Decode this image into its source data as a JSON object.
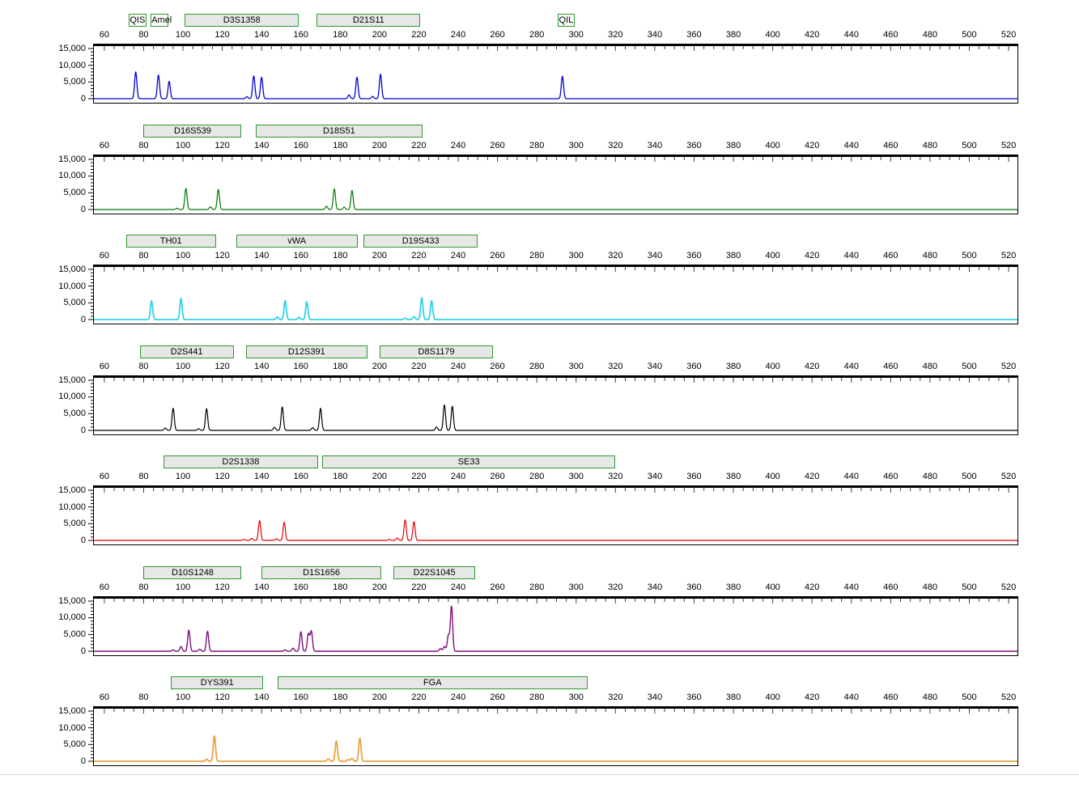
{
  "window": {
    "background": "#ffffff"
  },
  "axis": {
    "x_range": [
      54.7,
      524.5
    ],
    "x_ticks": [
      60,
      80,
      100,
      120,
      140,
      160,
      180,
      200,
      220,
      240,
      260,
      280,
      300,
      320,
      340,
      360,
      380,
      400,
      420,
      440,
      460,
      480,
      500,
      520
    ],
    "x_minor_step": 5,
    "y_range": [
      0,
      15000
    ],
    "y_tick_values": [
      15000,
      10000,
      5000,
      0
    ],
    "y_tick_labels": [
      "15,000",
      "10,000",
      "5,000",
      "0"
    ],
    "y_minor_step": 1000,
    "marker_box_fill": "#e7e7e7",
    "marker_box_border": "#2e9b2e"
  },
  "chart_data": [
    {
      "type": "line",
      "dye": "blue",
      "color": "#0202ce",
      "line_width": 1.3,
      "ylim": [
        0,
        15000
      ],
      "markers": [
        {
          "label": "QIS",
          "from": 72.3,
          "to": 80.6,
          "small": true
        },
        {
          "label": "Amel",
          "from": 83.6,
          "to": 91.8,
          "small": true
        },
        {
          "label": "D3S1358",
          "from": 101,
          "to": 158
        },
        {
          "label": "D21S11",
          "from": 168,
          "to": 220
        },
        {
          "label": "QIL",
          "from": 290.5,
          "to": 298.5,
          "small": true
        }
      ],
      "peaks": [
        [
          76,
          8000
        ],
        [
          87.5,
          7100
        ],
        [
          93,
          5200
        ],
        [
          132.5,
          600
        ],
        [
          136,
          6800
        ],
        [
          140,
          6400
        ],
        [
          184.5,
          1100
        ],
        [
          188.5,
          6400
        ],
        [
          196.5,
          700
        ],
        [
          200.5,
          7300
        ],
        [
          293,
          6700
        ]
      ]
    },
    {
      "type": "line",
      "dye": "green",
      "color": "#007700",
      "line_width": 1.2,
      "ylim": [
        0,
        15000
      ],
      "markers": [
        {
          "label": "D16S539",
          "from": 80,
          "to": 129
        },
        {
          "label": "D18S51",
          "from": 137,
          "to": 221
        }
      ],
      "peaks": [
        [
          97,
          400
        ],
        [
          101.5,
          6300
        ],
        [
          114,
          800
        ],
        [
          118,
          6000
        ],
        [
          173,
          1000
        ],
        [
          177,
          6200
        ],
        [
          182,
          700
        ],
        [
          186,
          5700
        ]
      ]
    },
    {
      "type": "line",
      "dye": "cyan",
      "color": "#2fd3e6",
      "line_width": 1.8,
      "ylim": [
        0,
        15000
      ],
      "markers": [
        {
          "label": "TH01",
          "from": 71,
          "to": 116
        },
        {
          "label": "vWA",
          "from": 127,
          "to": 188
        },
        {
          "label": "D19S433",
          "from": 192,
          "to": 249
        }
      ],
      "peaks": [
        [
          84,
          5600
        ],
        [
          99,
          6300
        ],
        [
          148,
          800
        ],
        [
          152,
          5600
        ],
        [
          159,
          700
        ],
        [
          163,
          5300
        ],
        [
          213,
          400
        ],
        [
          217.5,
          900
        ],
        [
          221.5,
          6500
        ],
        [
          226.5,
          5600
        ]
      ]
    },
    {
      "type": "line",
      "dye": "black",
      "color": "#000000",
      "line_width": 1.2,
      "ylim": [
        0,
        15000
      ],
      "markers": [
        {
          "label": "D2S441",
          "from": 78,
          "to": 125
        },
        {
          "label": "D12S391",
          "from": 132,
          "to": 193
        },
        {
          "label": "D8S1179",
          "from": 200,
          "to": 257
        }
      ],
      "peaks": [
        [
          91,
          700
        ],
        [
          95,
          6600
        ],
        [
          108,
          500
        ],
        [
          112,
          6500
        ],
        [
          146.5,
          900
        ],
        [
          150.5,
          7000
        ],
        [
          166,
          800
        ],
        [
          170,
          6600
        ],
        [
          229,
          1000
        ],
        [
          233,
          7600
        ],
        [
          237,
          7200
        ]
      ]
    },
    {
      "type": "line",
      "dye": "red",
      "color": "#e00000",
      "line_width": 1.2,
      "ylim": [
        0,
        15000
      ],
      "markers": [
        {
          "label": "D2S1338",
          "from": 90,
          "to": 168
        },
        {
          "label": "SE33",
          "from": 171,
          "to": 319
        }
      ],
      "peaks": [
        [
          131,
          300
        ],
        [
          135,
          600
        ],
        [
          139,
          5900
        ],
        [
          147.5,
          500
        ],
        [
          151.5,
          5400
        ],
        [
          205,
          300
        ],
        [
          209,
          700
        ],
        [
          213,
          6100
        ],
        [
          217.5,
          5600
        ]
      ]
    },
    {
      "type": "line",
      "dye": "purple",
      "color": "#7d107d",
      "line_width": 1.4,
      "ylim": [
        0,
        15000
      ],
      "markers": [
        {
          "label": "D10S1248",
          "from": 80,
          "to": 129
        },
        {
          "label": "D1S1656",
          "from": 140,
          "to": 200
        },
        {
          "label": "D22S1045",
          "from": 207,
          "to": 248
        }
      ],
      "peaks": [
        [
          95,
          400
        ],
        [
          99,
          1400
        ],
        [
          103,
          6300
        ],
        [
          108.5,
          600
        ],
        [
          112.5,
          6000
        ],
        [
          152,
          400
        ],
        [
          156,
          900
        ],
        [
          160,
          5800
        ],
        [
          163.8,
          5200
        ],
        [
          165.3,
          6000
        ],
        [
          231,
          800
        ],
        [
          233,
          1400
        ],
        [
          235,
          4700
        ],
        [
          236.6,
          13400
        ]
      ]
    },
    {
      "type": "line",
      "dye": "orange",
      "color": "#e9a440",
      "line_width": 1.8,
      "ylim": [
        0,
        15000
      ],
      "markers": [
        {
          "label": "DYS391",
          "from": 94,
          "to": 140
        },
        {
          "label": "FGA",
          "from": 148,
          "to": 305
        }
      ],
      "peaks": [
        [
          112,
          600
        ],
        [
          116,
          7600
        ],
        [
          174,
          700
        ],
        [
          178,
          6100
        ],
        [
          184,
          500
        ],
        [
          186,
          900
        ],
        [
          190,
          6900
        ]
      ]
    }
  ]
}
